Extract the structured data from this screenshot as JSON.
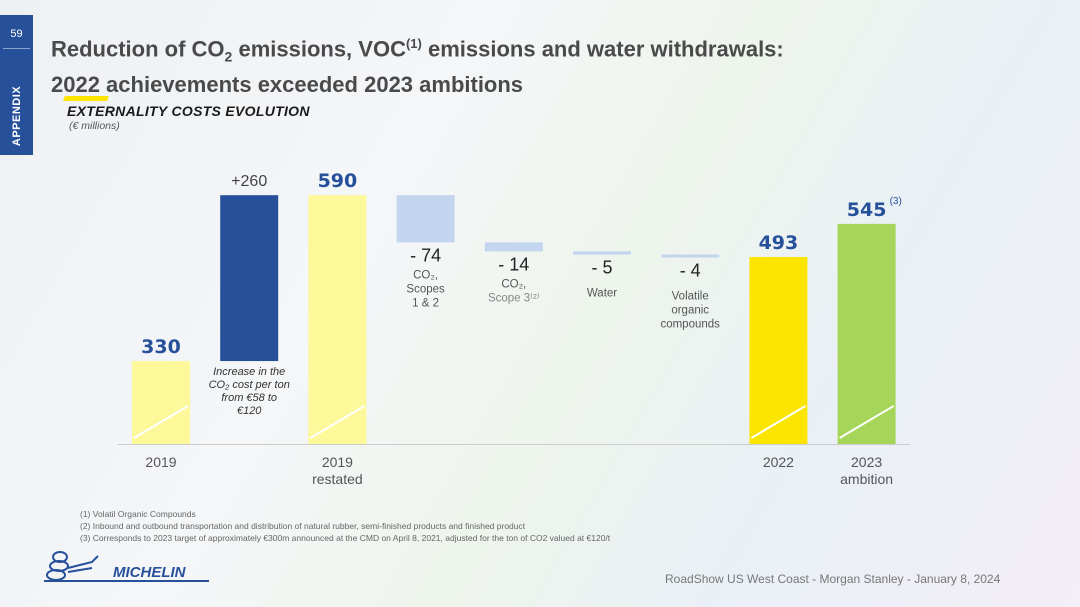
{
  "page_number": "59",
  "sidebar_label": "APPENDIX",
  "title": {
    "line1_a": "Reduction of CO",
    "line1_sub": "2",
    "line1_b": " emissions, VOC",
    "line1_sup": "(1)",
    "line1_c": " emissions and water withdrawals:",
    "line2": "2022 achievements exceeded 2023 ambitions"
  },
  "section_title": "EXTERNALITY COSTS EVOLUTION",
  "unit": "(€ millions)",
  "colors": {
    "accent_blue": "#27509b",
    "michelin_yellow": "#fce500",
    "pale_yellow": "#fdf89a",
    "green": "#a5d65a",
    "light_blue": "#c3d5ef"
  },
  "chart_data": {
    "type": "waterfall",
    "unit": "€ millions",
    "bars": [
      {
        "label": "2019",
        "value": 330,
        "kind": "total",
        "value_label": "330",
        "color": "#fdf89a",
        "hatch": true
      },
      {
        "label": "",
        "value": 260,
        "kind": "delta",
        "value_label": "+260",
        "color": "#27509b",
        "note": "Increase in the CO2 cost per ton from €58 to €120"
      },
      {
        "label": "2019 restated",
        "value": 590,
        "kind": "total",
        "value_label": "590",
        "color": "#fdf89a",
        "hatch": true
      },
      {
        "label": "",
        "value": -74,
        "kind": "delta",
        "value_label": "- 74",
        "color": "#c3d5ef",
        "note": "CO2, Scopes 1 & 2"
      },
      {
        "label": "",
        "value": -14,
        "kind": "delta",
        "value_label": "- 14",
        "color": "#c3d5ef",
        "note": "CO2, Scope 3(2)"
      },
      {
        "label": "",
        "value": -5,
        "kind": "delta",
        "value_label": "- 5",
        "color": "#c3d5ef",
        "note": "Water"
      },
      {
        "label": "",
        "value": -4,
        "kind": "delta",
        "value_label": "- 4",
        "color": "#c3d5ef",
        "note": "Volatile organic compounds"
      },
      {
        "label": "2022",
        "value": 493,
        "kind": "total",
        "value_label": "493",
        "color": "#fce500",
        "hatch": true
      },
      {
        "label": "2023 ambition",
        "value": 545,
        "kind": "total",
        "value_label": "545",
        "value_sup": "(3)",
        "color": "#a5d65a",
        "hatch": true
      }
    ],
    "axis_break": true,
    "grid": false
  },
  "footnotes": [
    "(1) Volatil Organic Compounds",
    "(2) Inbound and outbound transportation and distribution of natural rubber, semi-finished products and finished product",
    "(3) Corresponds to 2023 target of approximately €300m announced at the CMD on April 8, 2021, adjusted for the ton of CO2 valued at €120/t"
  ],
  "logo_text": "MICHELIN",
  "footer": "RoadShow US West Coast - Morgan Stanley - January 8, 2024"
}
